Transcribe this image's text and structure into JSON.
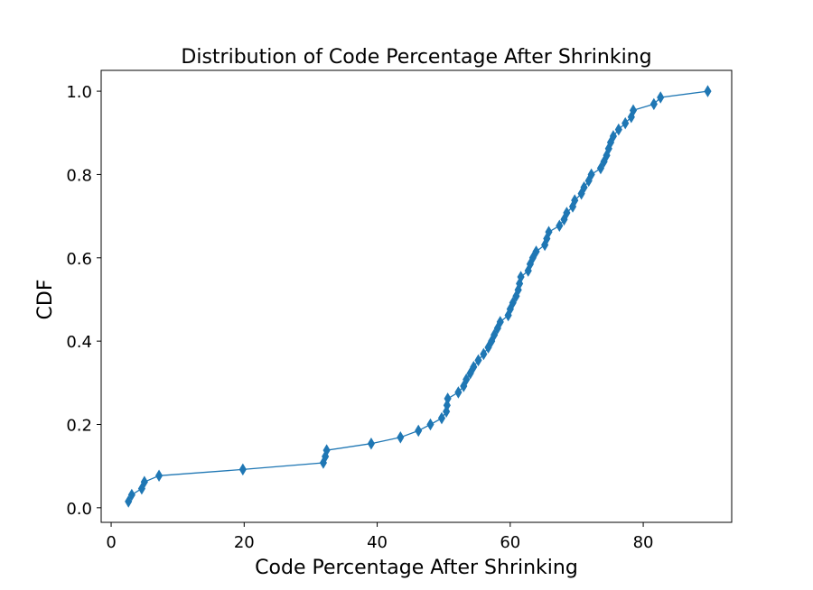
{
  "chart_data": {
    "type": "line",
    "title": "Distribution of Code Percentage After Shrinking",
    "xlabel": "Code Percentage After Shrinking",
    "ylabel": "CDF",
    "xlim": [
      -1.5,
      93.3
    ],
    "ylim": [
      -0.035,
      1.05
    ],
    "xticks": [
      0,
      20,
      40,
      60,
      80
    ],
    "xtick_labels": [
      "0",
      "20",
      "40",
      "60",
      "80"
    ],
    "yticks": [
      0.0,
      0.2,
      0.4,
      0.6,
      0.8,
      1.0
    ],
    "ytick_labels": [
      "0.0",
      "0.2",
      "0.4",
      "0.6",
      "0.8",
      "1.0"
    ],
    "grid": false,
    "marker": "thin-diamond",
    "series": [
      {
        "color": "#1f77b4",
        "x": [
          2.6,
          3.1,
          4.6,
          5.0,
          7.2,
          19.8,
          31.9,
          32.2,
          32.4,
          39.1,
          43.5,
          46.2,
          48.0,
          49.7,
          50.4,
          50.5,
          50.6,
          52.2,
          53.0,
          53.4,
          54.0,
          54.5,
          55.2,
          56.0,
          56.7,
          57.2,
          57.6,
          58.1,
          58.5,
          59.7,
          60.0,
          60.4,
          60.9,
          61.2,
          61.4,
          61.6,
          62.7,
          63.0,
          63.4,
          63.9,
          65.2,
          65.5,
          65.8,
          67.4,
          68.1,
          68.5,
          69.4,
          69.7,
          70.7,
          71.1,
          71.8,
          72.2,
          73.6,
          74.1,
          74.5,
          74.8,
          75.1,
          75.5,
          76.3,
          77.3,
          78.2,
          78.5,
          81.6,
          82.6,
          89.7
        ],
        "y": [
          0.015,
          0.031,
          0.046,
          0.062,
          0.077,
          0.092,
          0.108,
          0.123,
          0.138,
          0.154,
          0.169,
          0.185,
          0.2,
          0.215,
          0.231,
          0.246,
          0.262,
          0.277,
          0.292,
          0.308,
          0.323,
          0.338,
          0.354,
          0.369,
          0.385,
          0.4,
          0.415,
          0.431,
          0.446,
          0.462,
          0.477,
          0.492,
          0.508,
          0.523,
          0.538,
          0.554,
          0.569,
          0.585,
          0.6,
          0.615,
          0.631,
          0.646,
          0.662,
          0.677,
          0.692,
          0.708,
          0.723,
          0.738,
          0.754,
          0.769,
          0.785,
          0.8,
          0.815,
          0.831,
          0.846,
          0.862,
          0.877,
          0.892,
          0.908,
          0.923,
          0.938,
          0.954,
          0.969,
          0.985,
          1.0
        ]
      }
    ]
  }
}
